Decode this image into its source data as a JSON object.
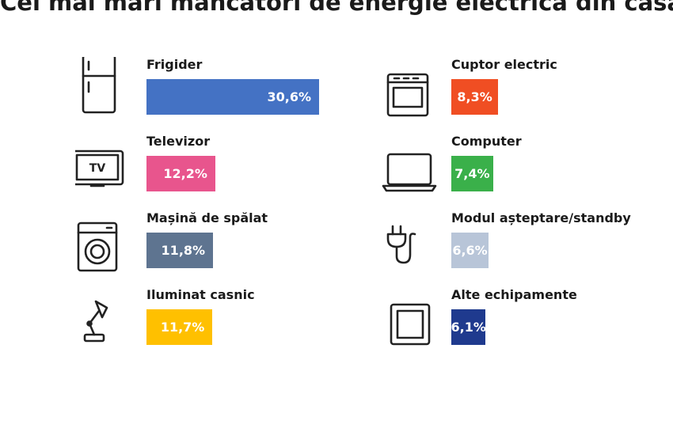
{
  "chart_data": {
    "type": "bar",
    "title": "Cei mai mari mâncători de energie electrică din casă",
    "unit": "%",
    "categories": [
      "Frigider",
      "Televizor",
      "Mașină de spălat",
      "Iluminat casnic",
      "Cuptor electric",
      "Computer",
      "Modul așteptare/standby",
      "Alte echipamente"
    ],
    "values": [
      30.6,
      12.2,
      11.8,
      11.7,
      8.3,
      7.4,
      6.6,
      6.1
    ],
    "value_labels": [
      "30,6%",
      "12,2%",
      "11,8%",
      "11,7%",
      "8,3%",
      "7,4%",
      "6,6%",
      "6,1%"
    ],
    "colors": [
      "#4472c4",
      "#e8558d",
      "#5e7490",
      "#ffc000",
      "#f04e23",
      "#3ab04a",
      "#b8c5d8",
      "#1f3a8e"
    ],
    "icons": [
      "fridge-icon",
      "tv-icon",
      "washing-machine-icon",
      "desk-lamp-icon",
      "oven-icon",
      "laptop-icon",
      "plug-icon",
      "square-outlet-icon"
    ]
  },
  "icon_texts": {
    "tv": "TV"
  }
}
